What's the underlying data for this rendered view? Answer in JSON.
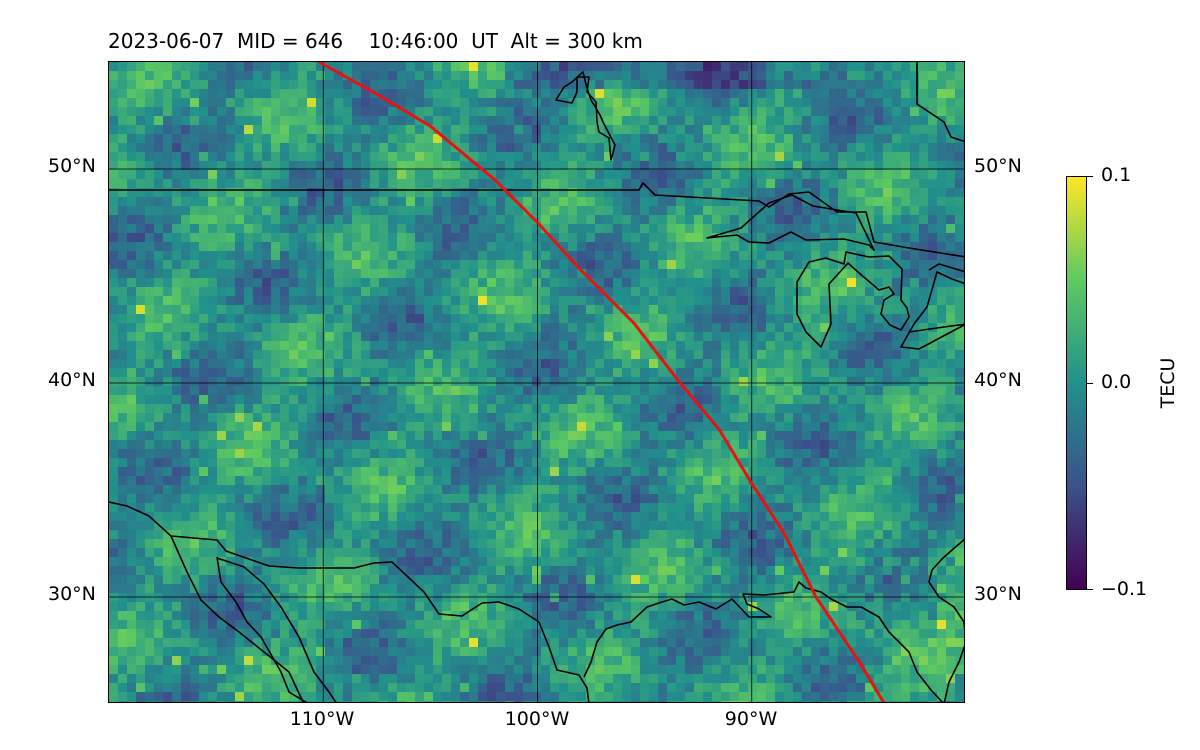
{
  "title": "2023-06-07  MID = 646    10:46:00  UT  Alt = 300 km",
  "map": {
    "projection": "equirectangular",
    "lon_range": [
      -120,
      -80
    ],
    "lat_range": [
      25,
      55
    ],
    "lat_labels": [
      "50°N",
      "40°N",
      "30°N"
    ],
    "lon_labels": [
      "110°W",
      "100°W",
      "90°W"
    ],
    "lat_gridlines": [
      50,
      40,
      30
    ],
    "lon_gridlines": [
      -110,
      -100,
      -90
    ],
    "field": "TEC perturbation (mostly near 0 TECU, scattered yellow patches)",
    "terminator_color": "#e8130f",
    "coastline_color": "#000000",
    "terminator_line": [
      [
        -110.2,
        55
      ],
      [
        -107.5,
        53.5
      ],
      [
        -105,
        52
      ],
      [
        -102,
        49.5
      ],
      [
        -100,
        47.5
      ],
      [
        -98,
        45.3
      ],
      [
        -95.5,
        42.8
      ],
      [
        -93.5,
        40.2
      ],
      [
        -91.5,
        37.8
      ],
      [
        -90,
        35.3
      ],
      [
        -88.5,
        33
      ],
      [
        -87,
        30
      ],
      [
        -85,
        27
      ],
      [
        -83.8,
        25
      ]
    ]
  },
  "colorbar": {
    "label": "TECU",
    "ticks": [
      "0.1",
      "0.0",
      "−0.1"
    ],
    "range": [
      -0.1,
      0.1
    ],
    "colormap": "viridis",
    "colors": [
      "#440154",
      "#3b528b",
      "#21918c",
      "#5ec962",
      "#fde725"
    ]
  }
}
